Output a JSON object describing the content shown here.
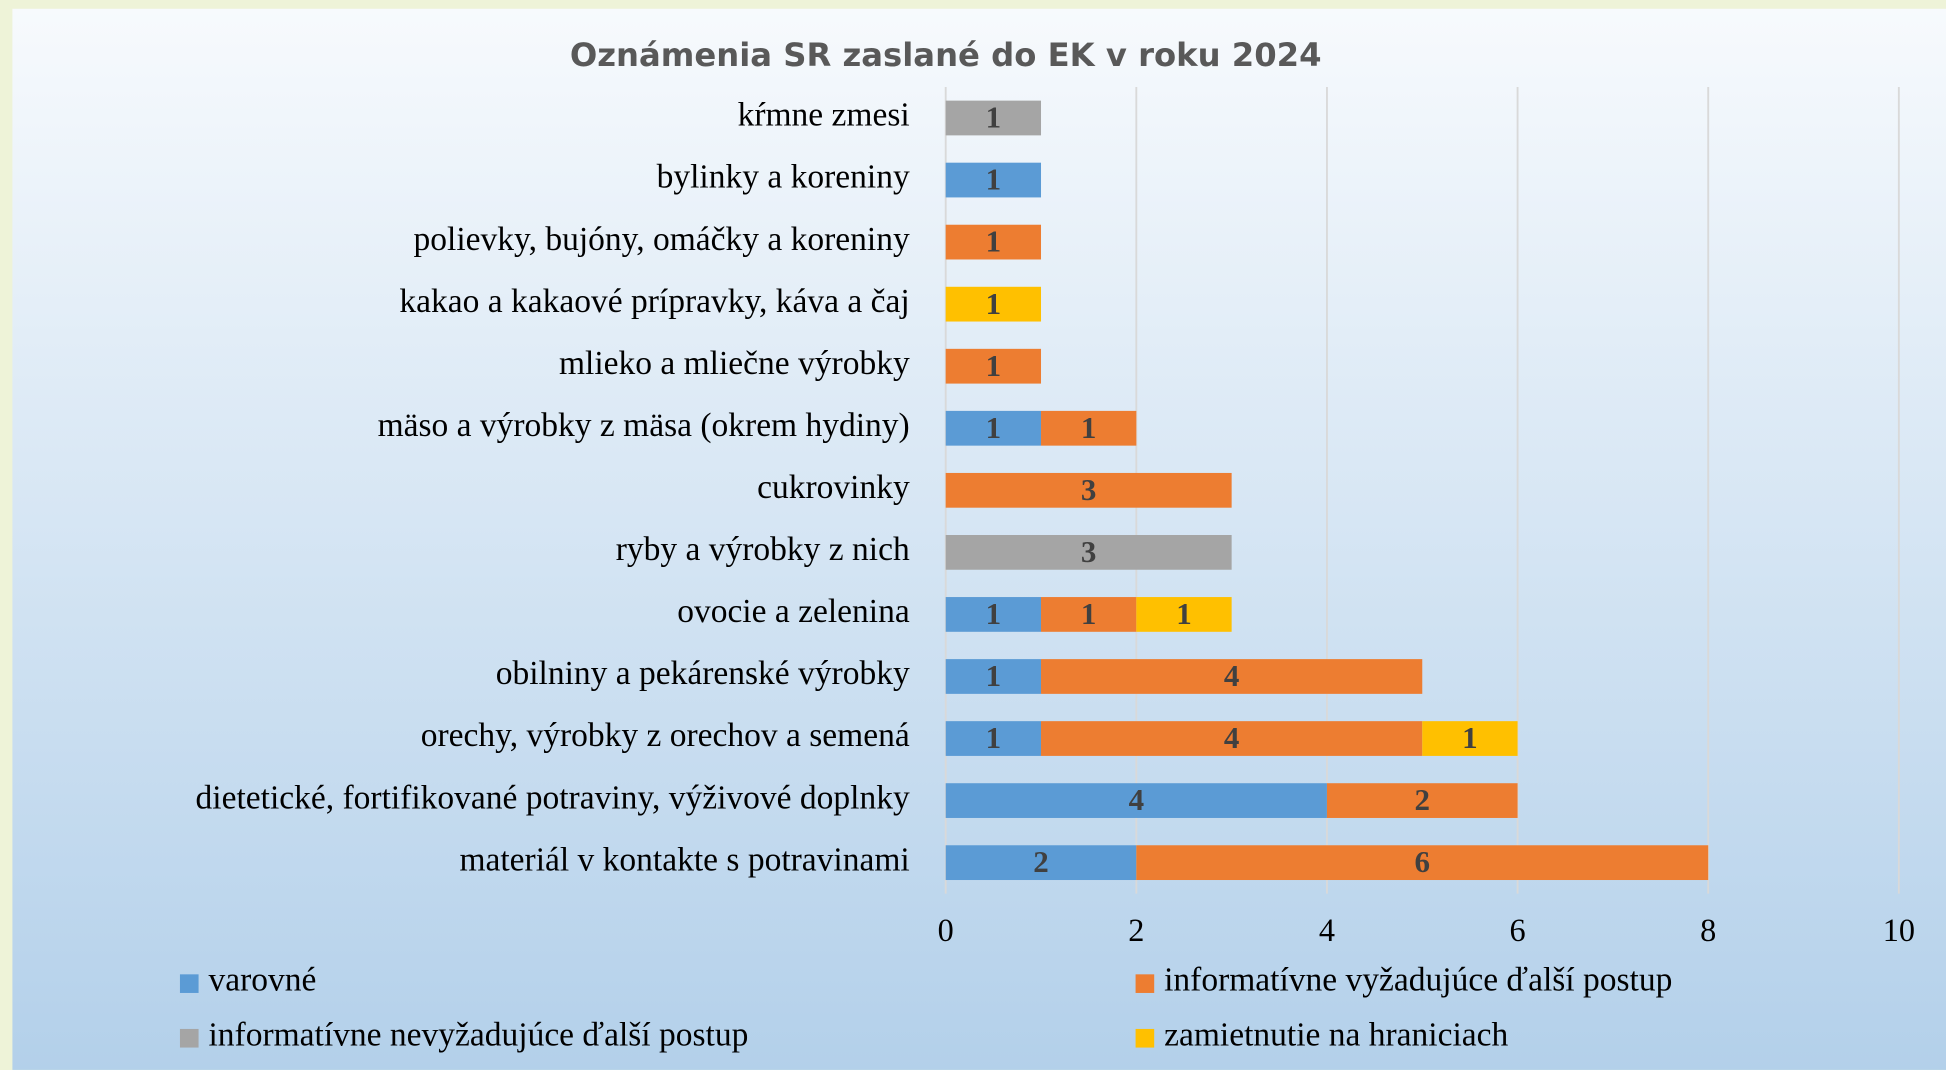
{
  "chart_data": {
    "type": "stacked-bar-horizontal",
    "title": "Oznámenia SR zaslané do EK v roku 2024",
    "categories": [
      "kŕmne zmesi",
      "bylinky a koreniny",
      "polievky, bujóny, omáčky a koreniny",
      "kakao a kakaové prípravky, káva a čaj",
      "mlieko a mliečne výrobky",
      "mäso a výrobky z mäsa (okrem hydiny)",
      "cukrovinky",
      "ryby a výrobky z nich",
      "ovocie a zelenina",
      "obilniny a pekárenské výrobky",
      "orechy, výrobky z orechov a semená",
      "dietetické, fortifikované potraviny, výživové doplnky",
      "materiál v kontakte s potravinami"
    ],
    "series": [
      {
        "name": "varovné",
        "color": "#5b9bd5",
        "values": [
          null,
          1,
          null,
          null,
          null,
          1,
          null,
          null,
          1,
          1,
          1,
          4,
          2
        ]
      },
      {
        "name": "informatívne vyžadujúce ďalší postup",
        "color": "#ed7d31",
        "values": [
          null,
          null,
          1,
          null,
          1,
          1,
          3,
          null,
          1,
          4,
          4,
          2,
          6
        ]
      },
      {
        "name": "informatívne nevyžadujúce ďalší postup",
        "color": "#a5a5a5",
        "values": [
          1,
          null,
          null,
          null,
          null,
          null,
          null,
          3,
          null,
          null,
          null,
          null,
          null
        ]
      },
      {
        "name": "zamietnutie na hraniciach",
        "color": "#ffc000",
        "values": [
          null,
          null,
          null,
          1,
          null,
          null,
          null,
          null,
          1,
          null,
          1,
          null,
          null
        ]
      }
    ],
    "xlim": [
      0,
      10
    ],
    "xticks": [
      0,
      2,
      4,
      6,
      8,
      10
    ],
    "grid": true,
    "legend": "bottom"
  }
}
